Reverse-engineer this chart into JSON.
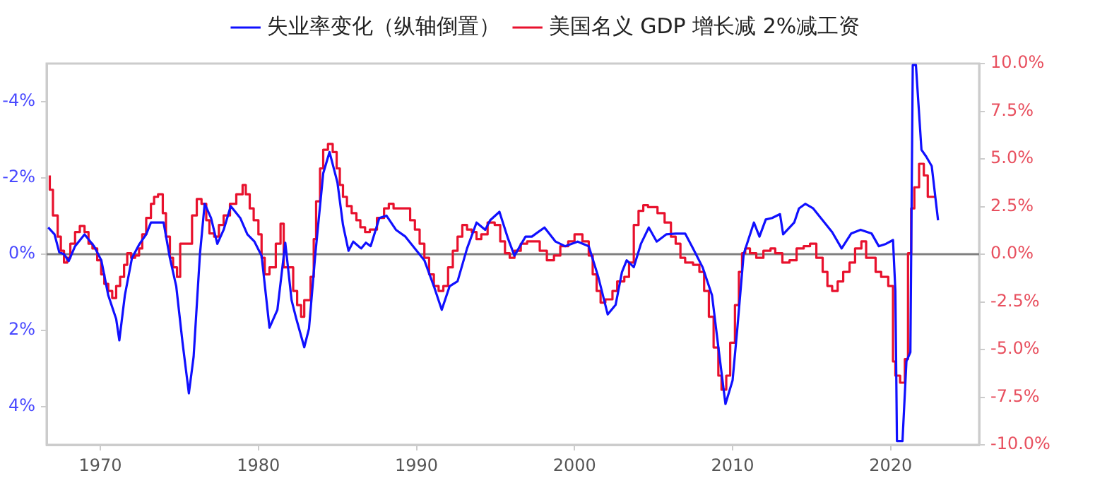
{
  "chart_data": {
    "type": "line",
    "legend": "top",
    "grid": false,
    "marker": "none",
    "line_style": "solid",
    "xlim": [
      1966.6,
      2025.6
    ],
    "xticks": [
      1970,
      1980,
      1990,
      2000,
      2010,
      2020
    ],
    "ylim": [
      5,
      -5
    ],
    "yticks": [
      {
        "value": -4,
        "label": "-4%"
      },
      {
        "value": -2,
        "label": "-2%"
      },
      {
        "value": 0,
        "label": "0%"
      },
      {
        "value": 2,
        "label": "2%"
      },
      {
        "value": 4,
        "label": "4%"
      }
    ],
    "y2lim": [
      -10,
      10
    ],
    "y2ticks": [
      {
        "value": -10,
        "label": "-10.0%"
      },
      {
        "value": -7.5,
        "label": "-7.5%"
      },
      {
        "value": -5,
        "label": "-5.0%"
      },
      {
        "value": -2.5,
        "label": "-2.5%"
      },
      {
        "value": 0,
        "label": "0.0%"
      },
      {
        "value": 2.5,
        "label": "2.5%"
      },
      {
        "value": 5,
        "label": "5.0%"
      },
      {
        "value": 7.5,
        "label": "7.5%"
      },
      {
        "value": 10,
        "label": "10.0%"
      }
    ],
    "ref_lines": [
      {
        "axis": "y",
        "value": 0,
        "color": "#808080"
      }
    ],
    "series": [
      {
        "name": "失业率变化（纵轴倒置）",
        "type": "line",
        "axis": "y",
        "color": "#1010ff",
        "x": [
          1966.7,
          1967.1,
          1967.4,
          1967.7,
          1968.0,
          1968.4,
          1969.0,
          1969.6,
          1970.06,
          1970.5,
          1971.0,
          1971.2,
          1971.55,
          1972.0,
          1972.45,
          1972.9,
          1973.2,
          1974.0,
          1974.4,
          1974.8,
          1975.2,
          1975.6,
          1975.9,
          1976.3,
          1976.6,
          1977.0,
          1977.4,
          1977.8,
          1978.25,
          1978.85,
          1979.3,
          1979.75,
          1980.2,
          1980.7,
          1981.2,
          1981.7,
          1982.1,
          1982.4,
          1982.9,
          1983.2,
          1983.6,
          1984.1,
          1984.5,
          1985.0,
          1985.35,
          1985.7,
          1986.0,
          1986.5,
          1986.8,
          1987.1,
          1987.65,
          1988.1,
          1988.7,
          1989.3,
          1989.9,
          1990.5,
          1991.1,
          1991.6,
          1992.1,
          1992.6,
          1993.2,
          1993.8,
          1994.35,
          1994.66,
          1995.25,
          1995.8,
          1996.2,
          1996.9,
          1997.3,
          1998.1,
          1998.8,
          1999.4,
          2000.2,
          2000.9,
          2001.5,
          2002.1,
          2002.6,
          2003.0,
          2003.3,
          2003.75,
          2004.2,
          2004.7,
          2005.2,
          2005.8,
          2006.4,
          2007.0,
          2007.5,
          2008.1,
          2008.7,
          2009.1,
          2009.55,
          2010.0,
          2010.3,
          2010.7,
          2011.35,
          2011.7,
          2012.1,
          2012.5,
          2013.0,
          2013.2,
          2013.9,
          2014.2,
          2014.6,
          2015.1,
          2015.7,
          2016.3,
          2016.9,
          2017.5,
          2018.1,
          2018.8,
          2019.25,
          2019.7,
          2020.15,
          2020.3,
          2020.4,
          2020.75,
          2021.0,
          2021.25,
          2021.4,
          2021.6,
          2021.95,
          2022.25,
          2022.6,
          2023.0
        ],
        "values": [
          -0.7,
          -0.52,
          -0.05,
          0,
          0.18,
          -0.21,
          -0.52,
          -0.21,
          0.16,
          1.08,
          1.7,
          2.26,
          1.08,
          0.1,
          -0.25,
          -0.52,
          -0.83,
          -0.83,
          0.1,
          0.84,
          2.32,
          3.65,
          2.69,
          0,
          -1.32,
          -0.95,
          -0.27,
          -0.64,
          -1.26,
          -0.95,
          -0.52,
          -0.33,
          0.04,
          1.93,
          1.46,
          -0.3,
          1.21,
          1.7,
          2.44,
          1.95,
          0,
          -2.12,
          -2.68,
          -1.88,
          -0.77,
          -0.09,
          -0.33,
          -0.15,
          -0.3,
          -0.21,
          -0.95,
          -1.01,
          -0.64,
          -0.46,
          -0.15,
          0.16,
          0.84,
          1.46,
          0.84,
          0.71,
          -0.15,
          -0.83,
          -0.64,
          -0.89,
          -1.11,
          -0.4,
          0.04,
          -0.46,
          -0.46,
          -0.7,
          -0.33,
          -0.21,
          -0.33,
          -0.21,
          0.59,
          1.58,
          1.33,
          0.47,
          0.16,
          0.34,
          -0.27,
          -0.7,
          -0.33,
          -0.52,
          -0.54,
          -0.54,
          -0.15,
          0.34,
          1.08,
          2.44,
          3.93,
          3.31,
          1.95,
          0,
          -0.83,
          -0.46,
          -0.91,
          -0.95,
          -1.05,
          -0.52,
          -0.83,
          -1.2,
          -1.32,
          -1.2,
          -0.89,
          -0.58,
          -0.15,
          -0.54,
          -0.64,
          -0.54,
          -0.21,
          -0.27,
          -0.37,
          0.96,
          4.9,
          4.9,
          2.81,
          2.57,
          -4.96,
          -4.96,
          -2.74,
          -2.56,
          -2.31,
          -0.89
        ]
      },
      {
        "name": "美国名义 GDP 增长减 2%减工资",
        "type": "step",
        "axis": "y2",
        "color": "#e8112d",
        "x": [
          1966.8,
          1967.0,
          1967.3,
          1967.5,
          1967.7,
          1967.9,
          1968.1,
          1968.4,
          1968.7,
          1969.0,
          1969.25,
          1969.5,
          1969.8,
          1970.05,
          1970.25,
          1970.5,
          1970.75,
          1971.0,
          1971.25,
          1971.5,
          1971.7,
          1971.95,
          1972.2,
          1972.45,
          1972.65,
          1972.9,
          1973.2,
          1973.4,
          1973.65,
          1973.95,
          1974.15,
          1974.4,
          1974.6,
          1974.85,
          1975.05,
          1975.8,
          1976.1,
          1976.4,
          1976.7,
          1976.9,
          1977.2,
          1977.5,
          1977.8,
          1978.2,
          1978.6,
          1979.0,
          1979.2,
          1979.45,
          1979.7,
          1980.0,
          1980.2,
          1980.4,
          1980.7,
          1981.1,
          1981.4,
          1981.6,
          1982.2,
          1982.45,
          1982.7,
          1982.9,
          1983.3,
          1983.5,
          1983.65,
          1983.9,
          1984.1,
          1984.4,
          1984.7,
          1984.95,
          1985.15,
          1985.35,
          1985.6,
          1985.9,
          1986.2,
          1986.45,
          1986.75,
          1987.05,
          1987.5,
          1987.95,
          1988.25,
          1988.55,
          1989.6,
          1989.9,
          1990.2,
          1990.5,
          1990.8,
          1991.1,
          1991.4,
          1991.7,
          1992.0,
          1992.3,
          1992.6,
          1992.9,
          1993.2,
          1993.5,
          1993.8,
          1994.1,
          1994.5,
          1994.95,
          1995.3,
          1995.6,
          1995.9,
          1996.2,
          1996.6,
          1997.0,
          1997.8,
          1998.25,
          1998.7,
          1999.1,
          1999.6,
          2000.0,
          2000.5,
          2000.9,
          2001.15,
          2001.4,
          2001.65,
          2001.95,
          2002.4,
          2002.7,
          2003.15,
          2003.45,
          2003.75,
          2004.05,
          2004.35,
          2004.65,
          2005.25,
          2005.7,
          2006.1,
          2006.4,
          2006.7,
          2007.0,
          2007.5,
          2007.9,
          2008.2,
          2008.5,
          2008.8,
          2009.1,
          2009.3,
          2009.6,
          2009.85,
          2010.15,
          2010.4,
          2010.6,
          2010.8,
          2011.1,
          2011.5,
          2011.95,
          2012.4,
          2012.7,
          2013.15,
          2013.6,
          2014.05,
          2014.5,
          2014.9,
          2015.3,
          2015.7,
          2016.0,
          2016.3,
          2016.65,
          2017.0,
          2017.4,
          2017.75,
          2018.15,
          2018.45,
          2019.05,
          2019.4,
          2019.85,
          2020.15,
          2020.3,
          2020.6,
          2020.9,
          2021.1,
          2021.3,
          2021.5,
          2021.8,
          2022.1,
          2022.35,
          2022.55,
          2022.8
        ],
        "values": [
          4.13,
          3.38,
          2.03,
          0.92,
          0.18,
          -0.44,
          -0.19,
          0.55,
          1.16,
          1.48,
          1.16,
          0.55,
          0.3,
          -0.32,
          -1.06,
          -1.56,
          -1.93,
          -2.3,
          -1.67,
          -1.19,
          -0.56,
          0.05,
          -0.19,
          -0.07,
          0.3,
          1.04,
          1.9,
          2.64,
          3.01,
          3.14,
          2.15,
          0.92,
          -0.19,
          -0.69,
          -1.19,
          0.55,
          2.03,
          2.89,
          2.64,
          1.78,
          1.09,
          0.92,
          1.53,
          2.03,
          2.64,
          3.14,
          3.63,
          3.14,
          2.4,
          1.78,
          1.04,
          -0.19,
          -1.06,
          -0.69,
          0.55,
          1.6,
          -0.69,
          -1.93,
          -2.67,
          -3.28,
          -2.41,
          -1.19,
          0.79,
          2.77,
          4.5,
          5.48,
          5.78,
          5.36,
          4.5,
          3.63,
          3.01,
          2.52,
          2.15,
          1.78,
          1.41,
          1.16,
          1.29,
          1.9,
          2.4,
          2.64,
          2.4,
          1.78,
          1.29,
          0.55,
          -0.19,
          -1.06,
          -1.67,
          -1.93,
          -1.67,
          -0.69,
          0.18,
          0.92,
          1.53,
          1.29,
          1.16,
          0.79,
          1.04,
          1.66,
          1.53,
          0.67,
          0.05,
          -0.19,
          0.18,
          0.55,
          0.67,
          0.18,
          -0.32,
          -0.07,
          0.42,
          0.67,
          1.04,
          0.67,
          -0.07,
          -1.06,
          -1.93,
          -2.54,
          -2.37,
          -1.93,
          -1.43,
          -1.19,
          -0.44,
          1.53,
          2.27,
          2.57,
          2.47,
          2.15,
          1.66,
          0.92,
          0.55,
          -0.19,
          -0.44,
          -0.56,
          -0.93,
          -1.93,
          -3.28,
          -4.89,
          -6.37,
          -7.11,
          -6.37,
          -4.64,
          -2.67,
          -0.93,
          0.05,
          0.3,
          0.05,
          -0.19,
          0.18,
          0.3,
          0.05,
          -0.44,
          -0.32,
          0.3,
          0.42,
          0.55,
          -0.19,
          -0.93,
          -1.67,
          -1.93,
          -1.43,
          -0.93,
          -0.44,
          0.3,
          0.67,
          -0.19,
          -0.93,
          -1.19,
          -1.67,
          -5.63,
          -6.37,
          -6.74,
          -5.5,
          0.05,
          2.4,
          3.51,
          4.74,
          4.13,
          3.01,
          3.01
        ]
      }
    ]
  }
}
